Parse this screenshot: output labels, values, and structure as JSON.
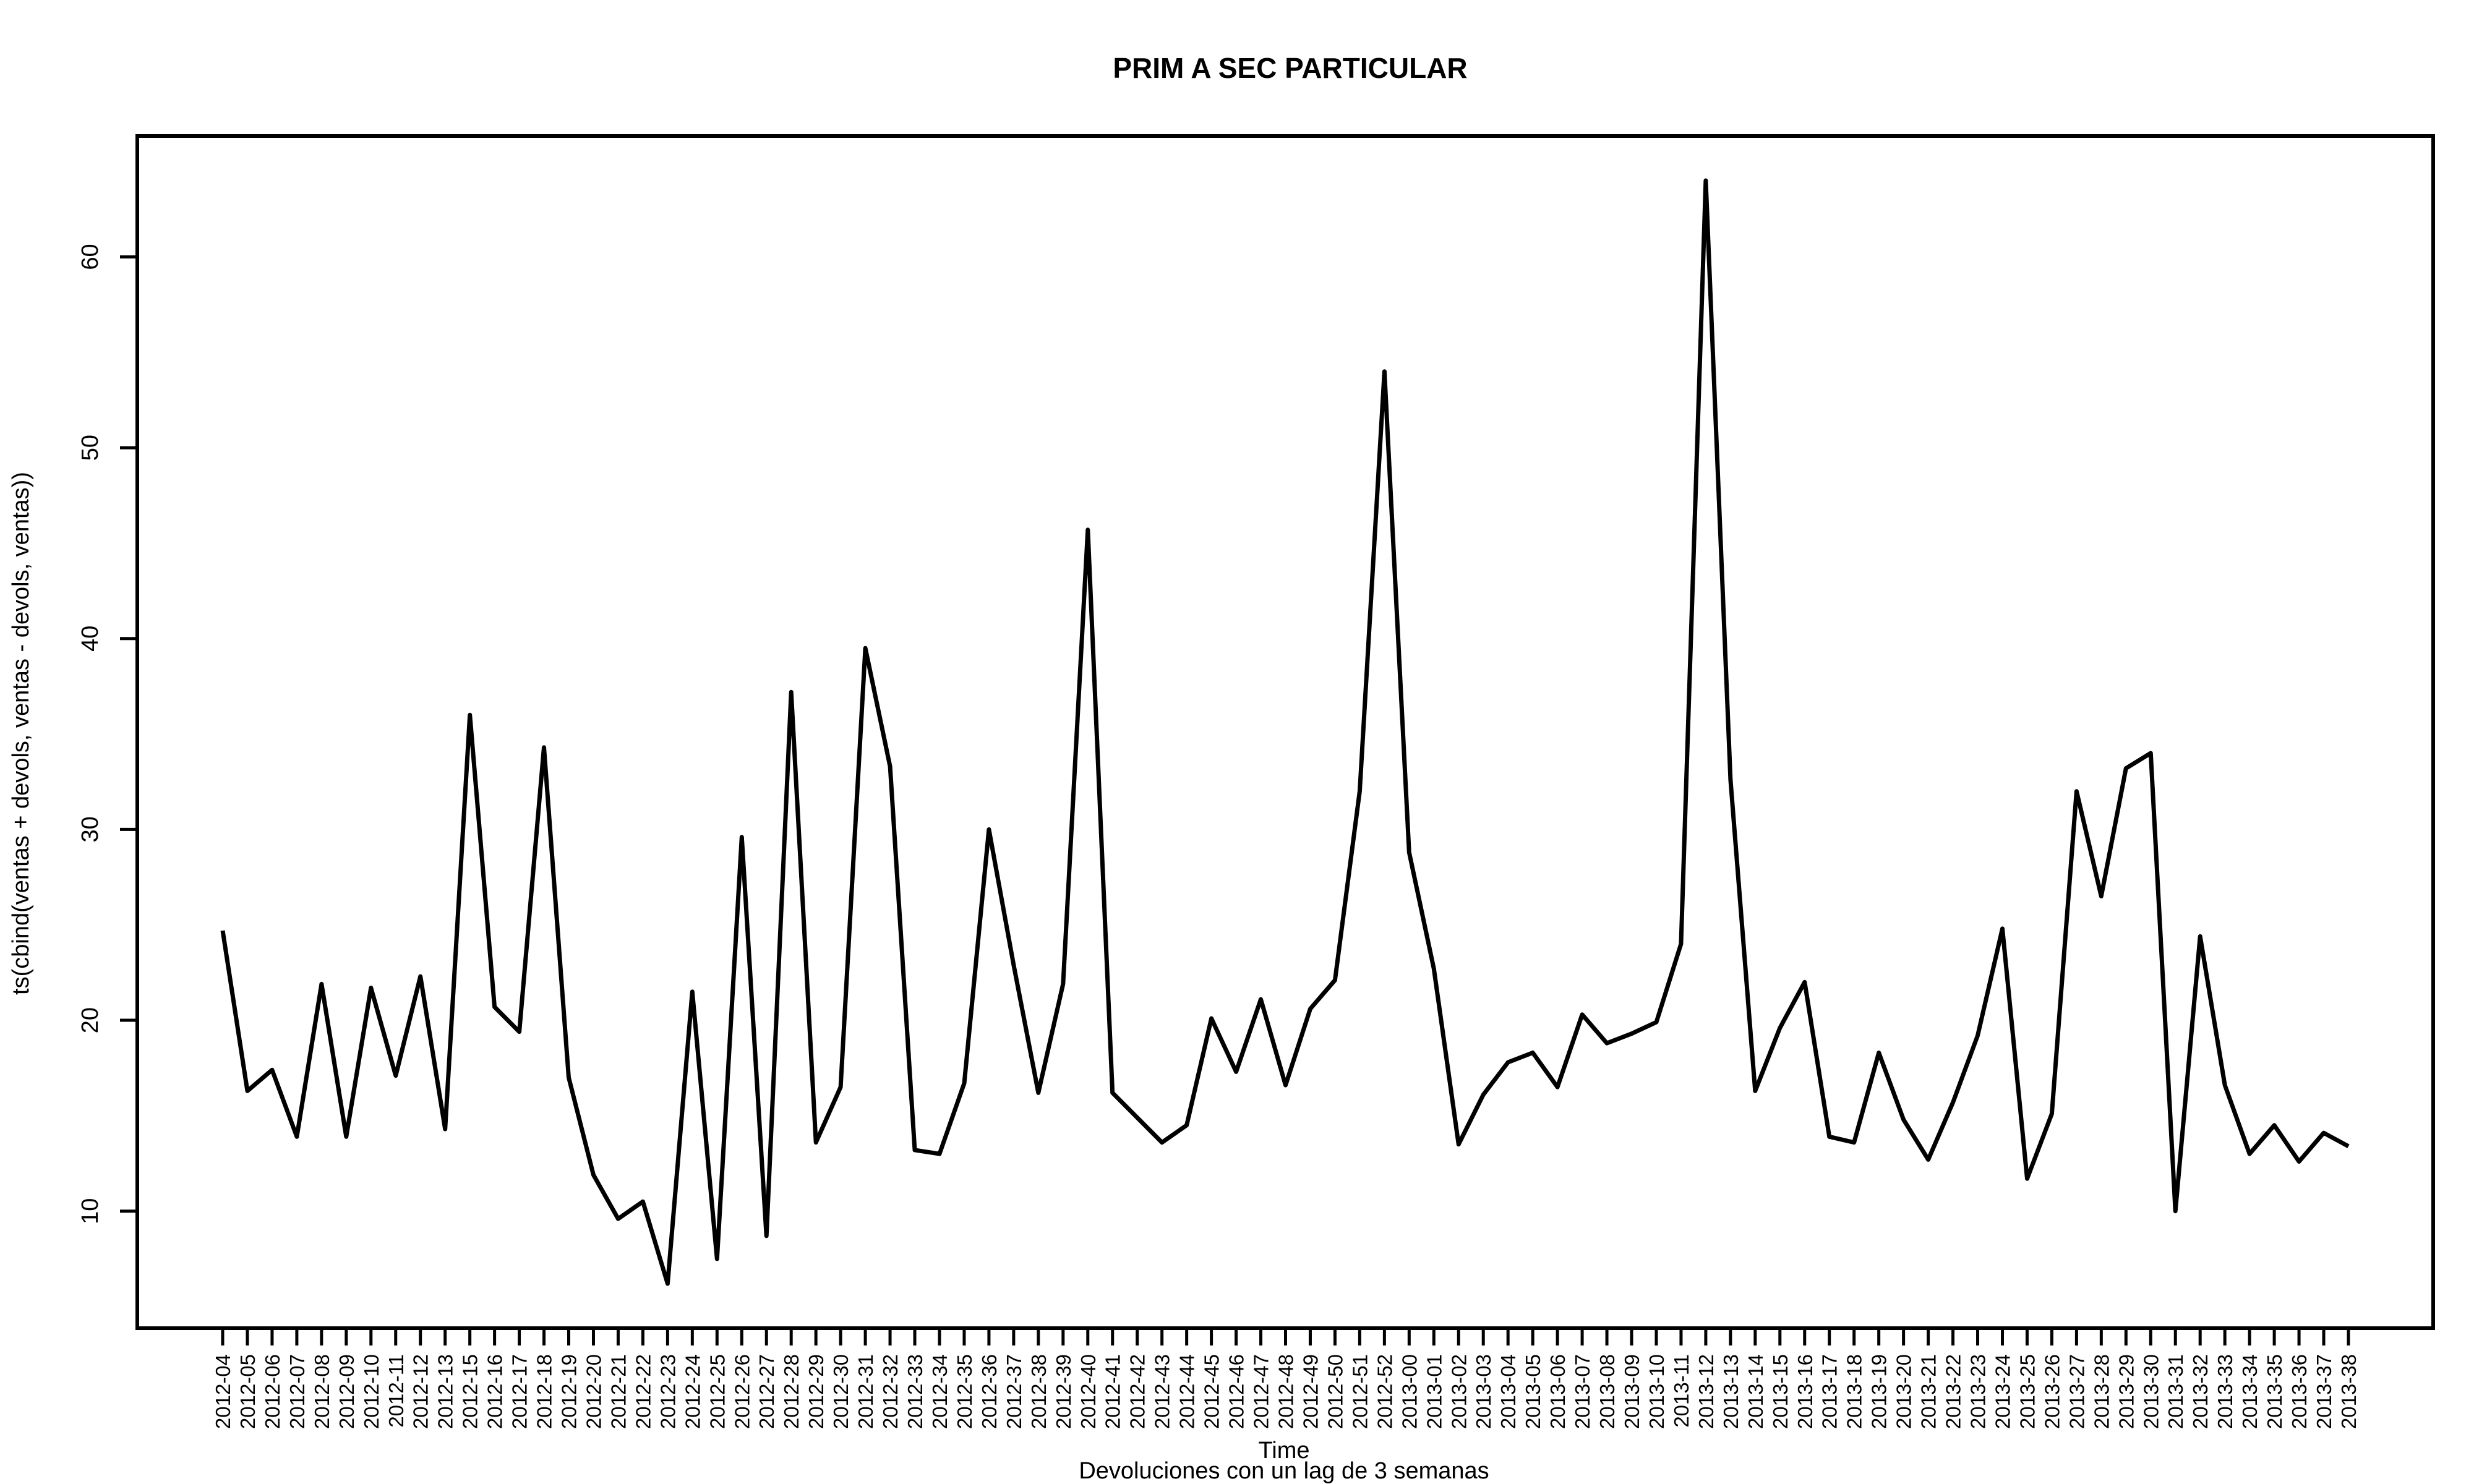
{
  "chart_data": {
    "type": "line",
    "title": "PRIM A SEC PARTICULAR",
    "xlabel": "Time",
    "ylabel": "ts(cbind(ventas + devols, ventas - devols, ventas))",
    "subtitle": "Devoluciones con un lag de 3 semanas",
    "ylim": [
      4,
      66
    ],
    "yticks": [
      10,
      20,
      30,
      40,
      50,
      60
    ],
    "grid": false,
    "x": [
      "2012-04",
      "2012-05",
      "2012-06",
      "2012-07",
      "2012-08",
      "2012-09",
      "2012-10",
      "2012-11",
      "2012-12",
      "2012-13",
      "2012-15",
      "2012-16",
      "2012-17",
      "2012-18",
      "2012-19",
      "2012-20",
      "2012-21",
      "2012-22",
      "2012-23",
      "2012-24",
      "2012-25",
      "2012-26",
      "2012-27",
      "2012-28",
      "2012-29",
      "2012-30",
      "2012-31",
      "2012-32",
      "2012-33",
      "2012-34",
      "2012-35",
      "2012-36",
      "2012-37",
      "2012-38",
      "2012-39",
      "2012-40",
      "2012-41",
      "2012-42",
      "2012-43",
      "2012-44",
      "2012-45",
      "2012-46",
      "2012-47",
      "2012-48",
      "2012-49",
      "2012-50",
      "2012-51",
      "2012-52",
      "2013-00",
      "2013-01",
      "2013-02",
      "2013-03",
      "2013-04",
      "2013-05",
      "2013-06",
      "2013-07",
      "2013-08",
      "2013-09",
      "2013-10",
      "2013-11",
      "2013-12",
      "2013-13",
      "2013-14",
      "2013-15",
      "2013-16",
      "2013-17",
      "2013-18",
      "2013-19",
      "2013-20",
      "2013-21",
      "2013-22",
      "2013-23",
      "2013-24",
      "2013-25",
      "2013-26",
      "2013-27",
      "2013-28",
      "2013-29",
      "2013-30",
      "2013-31",
      "2013-32",
      "2013-33",
      "2013-34",
      "2013-35",
      "2013-36",
      "2013-37",
      "2013-38"
    ],
    "series": [
      {
        "color": "#000000",
        "values": [
          24.7,
          16.3,
          17.4,
          13.9,
          21.9,
          13.9,
          21.7,
          17.1,
          22.3,
          14.3,
          36.0,
          20.7,
          19.4,
          34.3,
          17.0,
          11.9,
          9.6,
          10.5,
          6.2,
          21.5,
          7.5,
          29.6,
          8.7,
          37.2,
          13.6,
          16.5,
          39.5,
          33.3,
          13.2,
          13.0,
          16.7,
          30.0,
          22.9,
          16.2,
          21.9,
          45.7,
          16.2,
          14.9,
          13.6,
          14.5,
          20.1,
          17.3,
          21.1,
          16.6,
          20.6,
          22.1,
          32.0,
          54.0,
          28.8,
          22.7,
          13.5,
          16.1,
          17.8,
          18.3,
          16.5,
          20.3,
          18.8,
          19.3,
          19.9,
          24.0,
          64.0,
          32.6,
          16.3,
          19.6,
          22.0,
          13.9,
          13.6,
          18.3,
          14.8,
          12.7,
          15.7,
          19.2,
          24.8,
          11.7,
          15.1,
          32.0,
          26.5,
          33.2,
          34.0,
          10.0,
          24.4,
          16.6,
          13.0,
          14.5,
          12.6,
          14.1,
          13.4
        ]
      }
    ]
  }
}
